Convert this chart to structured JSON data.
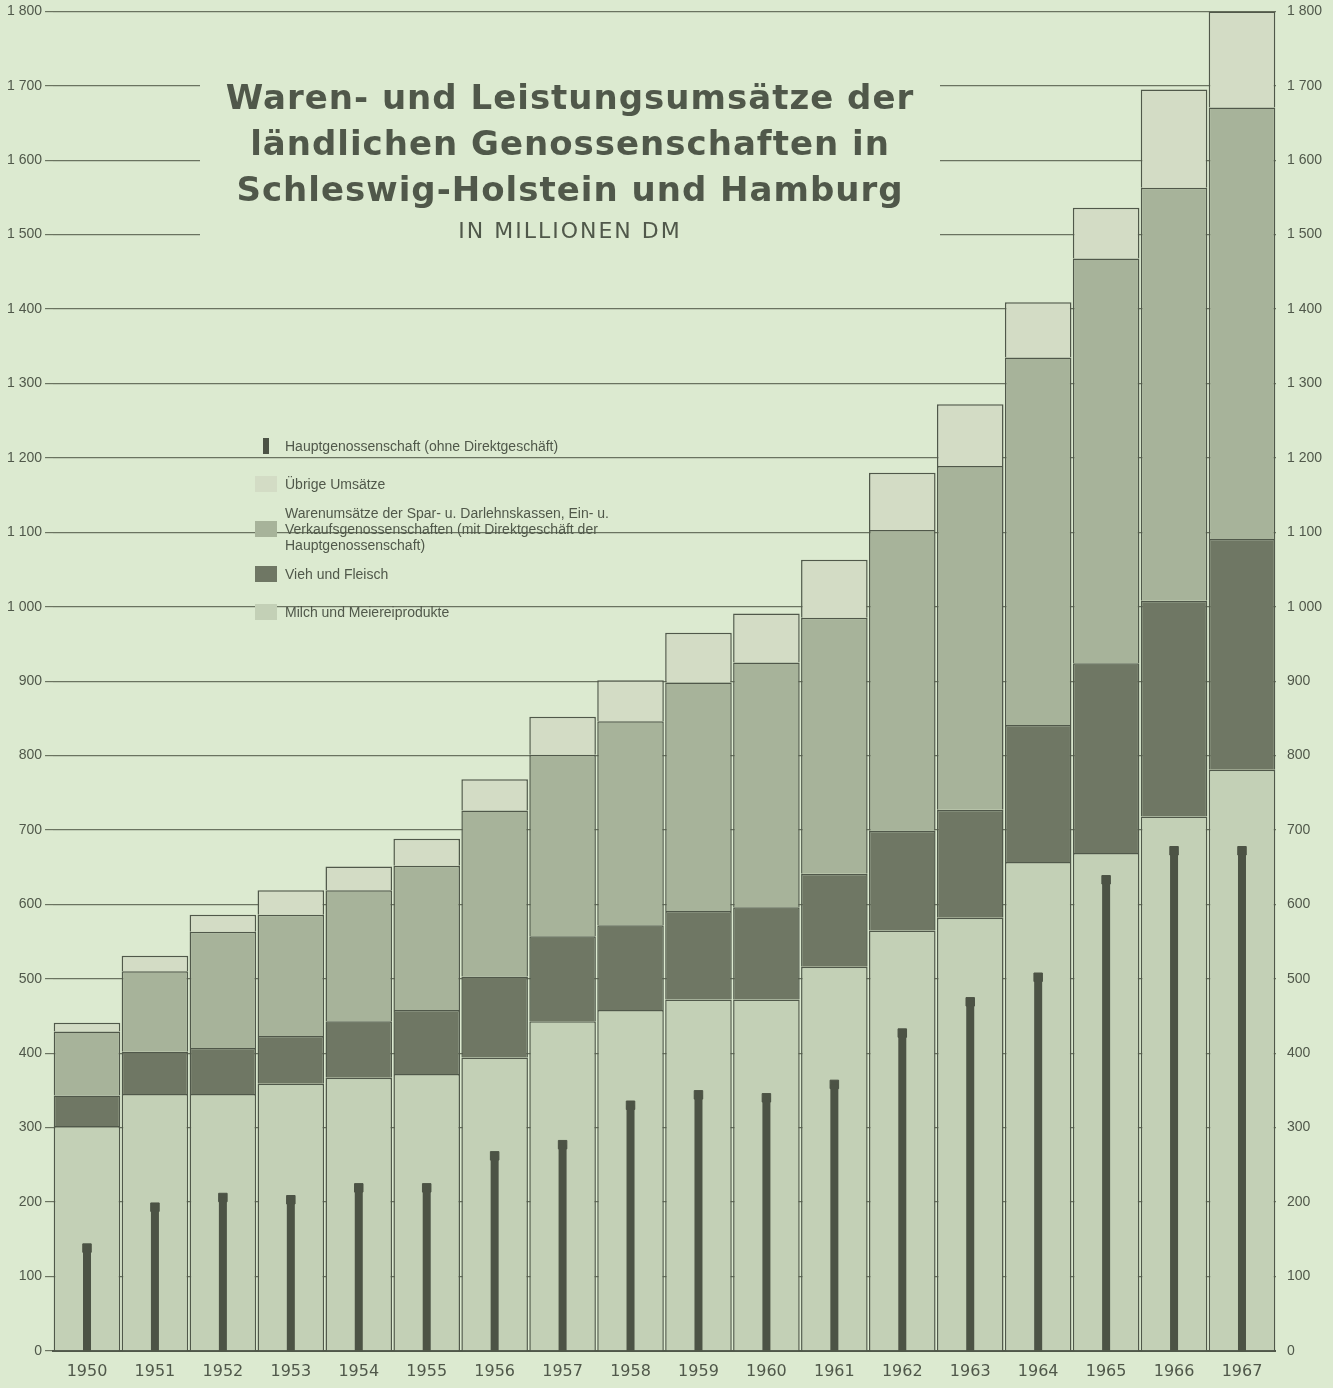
{
  "chart_data": {
    "type": "bar",
    "title": "Waren- und Leistungsumsätze der ländlichen Genossenschaften in Schleswig-Holstein und Hamburg",
    "subtitle": "IN MILLIONEN DM",
    "categories": [
      "1950",
      "1951",
      "1952",
      "1953",
      "1954",
      "1955",
      "1956",
      "1957",
      "1958",
      "1959",
      "1960",
      "1961",
      "1962",
      "1963",
      "1964",
      "1965",
      "1966",
      "1967"
    ],
    "stacked": true,
    "series": [
      {
        "name": "Milch und Meiereiprodukte",
        "color": "#c3d0b6",
        "values": [
          302,
          345,
          345,
          359,
          367,
          372,
          394,
          443,
          458,
          472,
          472,
          516,
          565,
          582,
          657,
          669,
          718,
          781
        ]
      },
      {
        "name": "Vieh und Fleisch",
        "color": "#6f7764",
        "values": [
          41,
          57,
          62,
          64,
          76,
          86,
          109,
          114,
          114,
          119,
          124,
          125,
          134,
          145,
          184,
          255,
          290,
          310
        ]
      },
      {
        "name": "Warenumsätze der Spar- u. Darlehnskassen, Ein- u. Verkaufsgenossenschaften (mit Direktgeschäft der Hauptgenossenschaft)",
        "color": "#a7b39a",
        "values": [
          86,
          108,
          156,
          163,
          176,
          194,
          223,
          244,
          274,
          307,
          329,
          344,
          404,
          462,
          494,
          544,
          555,
          580
        ]
      },
      {
        "name": "Übrige Umsätze",
        "color": "#d3dcc5",
        "values": [
          12,
          21,
          23,
          33,
          32,
          36,
          42,
          51,
          55,
          67,
          66,
          78,
          77,
          83,
          74,
          68,
          132,
          129
        ]
      },
      {
        "name": "Hauptgenossenschaft (ohne Direktgeschäft)",
        "type": "lollipop",
        "color": "#4c5345",
        "values": [
          138,
          193,
          206,
          203,
          219,
          219,
          262,
          277,
          330,
          344,
          340,
          358,
          427,
          469,
          502,
          633,
          672,
          672
        ]
      }
    ],
    "ylim": [
      0,
      1800
    ],
    "yticks": [
      0,
      100,
      200,
      300,
      400,
      500,
      600,
      700,
      800,
      900,
      {
        "value": 1000,
        "label": "1 000"
      },
      {
        "value": 1100,
        "label": "1 100"
      },
      {
        "value": 1200,
        "label": "1 200"
      },
      {
        "value": 1300,
        "label": "1 300"
      },
      {
        "value": 1400,
        "label": "1 400"
      },
      {
        "value": 1500,
        "label": "1 500"
      },
      {
        "value": 1600,
        "label": "1 600"
      },
      {
        "value": 1700,
        "label": "1 700"
      },
      {
        "value": 1800,
        "label": "1 800"
      }
    ],
    "y2lim": [
      0,
      1800
    ],
    "y2ticks": [
      0,
      100,
      200,
      300,
      400,
      500,
      600,
      700,
      800,
      900,
      {
        "value": 1000,
        "label": "1 000"
      },
      {
        "value": 1100,
        "label": "1 100"
      },
      {
        "value": 1200,
        "label": "1 200"
      },
      {
        "value": 1300,
        "label": "1 300"
      },
      {
        "value": 1400,
        "label": "1 400"
      },
      {
        "value": 1500,
        "label": "1 500"
      },
      {
        "value": 1600,
        "label": "1 600"
      },
      {
        "value": 1700,
        "label": "1 700"
      },
      {
        "value": 1800,
        "label": "1 800"
      }
    ],
    "grid": "y",
    "legend": "top left"
  }
}
